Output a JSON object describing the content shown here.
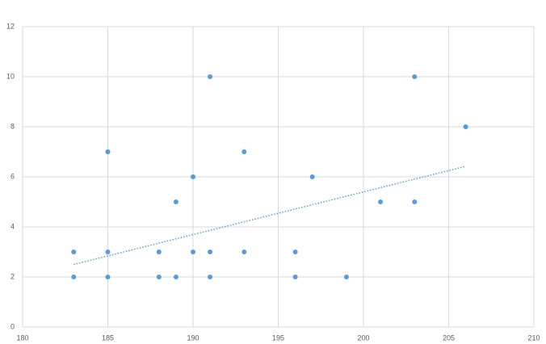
{
  "chart_data": {
    "type": "scatter",
    "x": [
      183,
      183,
      185,
      185,
      185,
      188,
      188,
      189,
      189,
      190,
      190,
      191,
      191,
      191,
      193,
      193,
      196,
      196,
      197,
      199,
      201,
      203,
      203,
      206
    ],
    "values": [
      3,
      2,
      7,
      3,
      2,
      3,
      2,
      5,
      2,
      6,
      3,
      10,
      3,
      2,
      7,
      3,
      3,
      2,
      6,
      2,
      5,
      10,
      5,
      8
    ],
    "color": "#5b9bd5",
    "trendline": {
      "x": [
        183,
        206
      ],
      "values": [
        2.5,
        6.42
      ],
      "color": "#5b9bd5"
    },
    "xlim": [
      180,
      210
    ],
    "xticks": [
      180,
      185,
      190,
      195,
      200,
      205,
      210
    ],
    "ylim": [
      0,
      12
    ],
    "yticks": [
      0,
      2,
      4,
      6,
      8,
      10,
      12
    ],
    "grid": true
  }
}
